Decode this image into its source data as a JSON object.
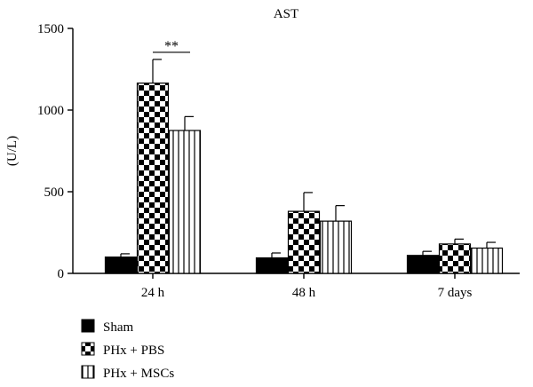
{
  "chart_data": {
    "type": "bar",
    "title": "AST",
    "ylabel": "(U/L)",
    "xlabel": "",
    "categories": [
      "24 h",
      "48 h",
      "7 days"
    ],
    "ylim": [
      0,
      1500
    ],
    "yticks": [
      0,
      500,
      1000,
      1500
    ],
    "series": [
      {
        "name": "Sham",
        "values": [
          100,
          95,
          110
        ],
        "errors": [
          20,
          30,
          25
        ],
        "pattern": "solid"
      },
      {
        "name": "PHx + PBS",
        "values": [
          1165,
          380,
          180
        ],
        "errors": [
          145,
          115,
          30
        ],
        "pattern": "checker"
      },
      {
        "name": "PHx + MSCs",
        "values": [
          875,
          320,
          155
        ],
        "errors": [
          85,
          95,
          35
        ],
        "pattern": "vstripe"
      }
    ],
    "annotations": [
      {
        "text": "**",
        "category": "24 h",
        "between": [
          "PHx + PBS",
          "PHx + MSCs"
        ]
      }
    ],
    "legend_position": "bottom-left",
    "grid": false,
    "colors": {
      "ink": "#000000",
      "background": "#ffffff"
    }
  }
}
